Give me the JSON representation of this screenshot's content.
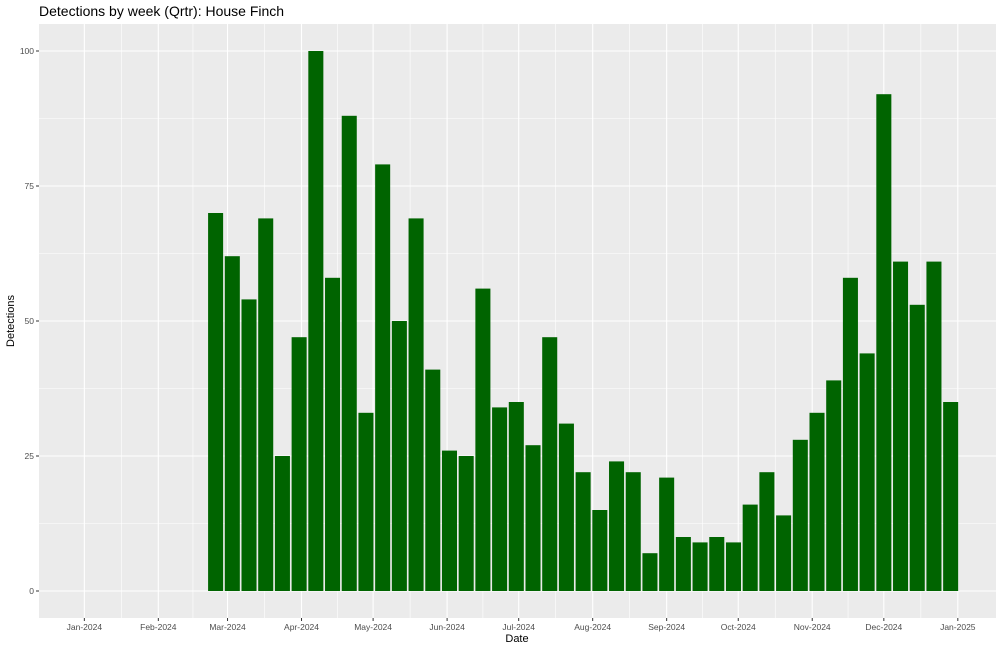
{
  "chart_data": {
    "type": "bar",
    "title": "Detections by week (Qrtr): House Finch",
    "xlabel": "Date",
    "ylabel": "Detections",
    "x_tick_labels": [
      "Jan-2024",
      "Feb-2024",
      "Mar-2024",
      "Apr-2024",
      "May-2024",
      "Jun-2024",
      "Jul-2024",
      "Aug-2024",
      "Sep-2024",
      "Oct-2024",
      "Nov-2024",
      "Dec-2024",
      "Jan-2025"
    ],
    "x_tick_dates": [
      "2024-01-01",
      "2024-02-01",
      "2024-03-01",
      "2024-04-01",
      "2024-05-01",
      "2024-06-01",
      "2024-07-01",
      "2024-08-01",
      "2024-09-01",
      "2024-10-01",
      "2024-11-01",
      "2024-12-01",
      "2025-01-01"
    ],
    "xlim": [
      "2023-12-13",
      "2025-01-17"
    ],
    "y_ticks": [
      0,
      25,
      50,
      75,
      100
    ],
    "ylim": [
      -5,
      105
    ],
    "grid": true,
    "bar_color": "#006400",
    "panel_background": "#ebebeb",
    "series": [
      {
        "x": [
          "2024-02-25",
          "2024-03-03",
          "2024-03-10",
          "2024-03-17",
          "2024-03-24",
          "2024-03-31",
          "2024-04-07",
          "2024-04-14",
          "2024-04-21",
          "2024-04-28",
          "2024-05-05",
          "2024-05-12",
          "2024-05-19",
          "2024-05-26",
          "2024-06-02",
          "2024-06-09",
          "2024-06-16",
          "2024-06-23",
          "2024-06-30",
          "2024-07-07",
          "2024-07-14",
          "2024-07-21",
          "2024-07-28",
          "2024-08-04",
          "2024-08-11",
          "2024-08-18",
          "2024-08-25",
          "2024-09-01",
          "2024-09-08",
          "2024-09-15",
          "2024-09-22",
          "2024-09-29",
          "2024-10-06",
          "2024-10-13",
          "2024-10-20",
          "2024-10-27",
          "2024-11-03",
          "2024-11-10",
          "2024-11-17",
          "2024-11-24",
          "2024-12-01",
          "2024-12-08",
          "2024-12-15",
          "2024-12-22",
          "2024-12-29"
        ],
        "values": [
          70,
          62,
          54,
          69,
          25,
          47,
          100,
          58,
          88,
          33,
          79,
          50,
          69,
          41,
          26,
          25,
          56,
          34,
          35,
          27,
          47,
          31,
          22,
          15,
          24,
          22,
          7,
          21,
          10,
          9,
          10,
          9,
          16,
          22,
          14,
          28,
          33,
          39,
          58,
          44,
          92,
          61,
          53,
          61,
          35
        ]
      }
    ]
  }
}
